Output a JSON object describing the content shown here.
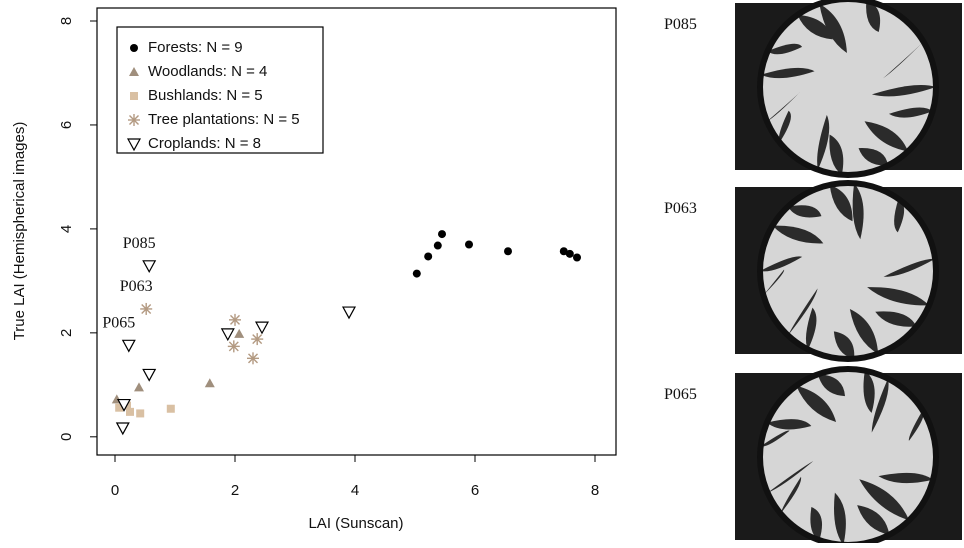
{
  "chart_data": {
    "type": "scatter",
    "xlabel": "LAI (Sunscan)",
    "ylabel": "True LAI (Hemispherical images)",
    "xlim": [
      -0.3,
      8.35
    ],
    "ylim": [
      -0.35,
      8.25
    ],
    "xticks": [
      0,
      2,
      4,
      6,
      8
    ],
    "yticks": [
      0,
      2,
      4,
      6,
      8
    ],
    "legend": "upper left",
    "series": [
      {
        "name": "Forests: N = 9",
        "marker": "circle",
        "color": "#000000",
        "x": [
          5.03,
          5.22,
          5.38,
          5.45,
          5.9,
          6.55,
          7.48,
          7.58,
          7.7
        ],
        "y": [
          3.14,
          3.47,
          3.68,
          3.9,
          3.7,
          3.57,
          3.57,
          3.52,
          3.45
        ]
      },
      {
        "name": "Woodlands: N = 4",
        "marker": "triangle-up",
        "color": "#a08f7d",
        "x": [
          0.03,
          0.4,
          1.58,
          2.07
        ],
        "y": [
          0.72,
          0.95,
          1.03,
          1.98
        ]
      },
      {
        "name": "Bushlands: N = 5",
        "marker": "square",
        "color": "#d9c0a3",
        "x": [
          0.07,
          0.25,
          0.42,
          0.93,
          0.2
        ],
        "y": [
          0.56,
          0.48,
          0.45,
          0.54,
          0.6
        ]
      },
      {
        "name": "Tree plantations: N = 5",
        "marker": "asterisk",
        "color": "#b39a82",
        "x": [
          0.52,
          2.0,
          1.98,
          2.3,
          2.37
        ],
        "y": [
          2.46,
          2.25,
          1.74,
          1.51,
          1.88
        ]
      },
      {
        "name": "Croplands: N = 8",
        "marker": "triangle-down",
        "color": "#000000",
        "x": [
          0.57,
          0.23,
          0.57,
          0.15,
          0.13,
          1.88,
          2.45,
          3.9
        ],
        "y": [
          3.29,
          1.76,
          1.2,
          0.62,
          0.17,
          1.98,
          2.11,
          2.4
        ]
      }
    ],
    "annotations": [
      "P085",
      "P063",
      "P065"
    ],
    "images": [
      {
        "label": "P085"
      },
      {
        "label": "P063"
      },
      {
        "label": "P065"
      }
    ]
  }
}
